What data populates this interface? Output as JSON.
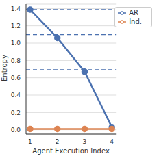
{
  "chart_data": {
    "type": "line",
    "x_label": "Agent Execution Index",
    "y_label": "Entropy",
    "x": [
      1,
      2,
      3,
      4
    ],
    "series": [
      {
        "name": "AR",
        "color": "#4c72b0",
        "marker": "o",
        "values": [
          1.386,
          1.06,
          0.67,
          0.03
        ]
      },
      {
        "name": "Ind.",
        "color": "#dd8452",
        "marker": "o",
        "values": [
          0.01,
          0.01,
          0.01,
          0.01
        ]
      }
    ],
    "hlines": [
      1.386,
      1.099,
      0.693
    ],
    "xlim": [
      0.85,
      4.15
    ],
    "xticks": [
      1,
      2,
      3,
      4
    ],
    "ylim": [
      -0.05,
      1.45
    ],
    "yticks": [
      {
        "value": 0,
        "label": "0.0"
      },
      {
        "value": 0.2,
        "label": "0.2"
      },
      {
        "value": 0.4,
        "label": "0.4"
      },
      {
        "value": 0.6,
        "label": "0.6"
      },
      {
        "value": 0.8,
        "label": "0.8"
      },
      {
        "value": 1.0,
        "label": "1.0"
      },
      {
        "value": 1.2,
        "label": "1.2"
      },
      {
        "value": 1.4,
        "label": "1.4"
      }
    ],
    "grid": "y",
    "legend": "upper right"
  }
}
